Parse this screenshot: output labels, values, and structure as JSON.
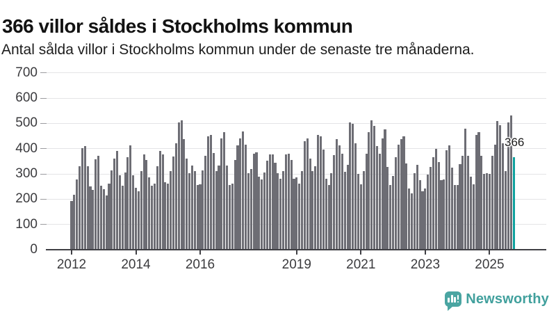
{
  "title": "366 villor såldes i Stockholms kommun",
  "subtitle": "Antal sålda villor i Stockholms kommun under de senaste tre månaderna.",
  "logo": {
    "text": "Newsworthy",
    "icon": "newsworthy-speech-bubble-bar-chart-icon",
    "icon_color": "#4aa5a2",
    "text_color": "#41a09d"
  },
  "colors": {
    "bar": "#6d6d74",
    "highlight_bar": "#0ea19e",
    "gridline": "#e4e4e6",
    "axis_line": "#3f3f44",
    "axis_text": "#3b3b3e",
    "title_text": "#121212"
  },
  "chart_data": {
    "type": "bar",
    "title": "366 villor såldes i Stockholms kommun",
    "subtitle": "Antal sålda villor i Stockholms kommun under de senaste tre månaderna.",
    "xlabel": "",
    "ylabel": "",
    "x_start": "2012-01",
    "x_end": "2025-10",
    "x_unit": "month",
    "ylim": [
      0,
      700
    ],
    "y_ticks": [
      0,
      100,
      200,
      300,
      400,
      500,
      600,
      700
    ],
    "x_tick_labels": [
      "2012",
      "2014",
      "2016",
      "2019",
      "2021",
      "2023",
      "2025"
    ],
    "x_tick_month_offsets": [
      0,
      24,
      48,
      84,
      108,
      132,
      156
    ],
    "grid": "horizontal",
    "legend": "none",
    "highlight_last": true,
    "highlight_value_label": "366",
    "values": [
      192,
      218,
      278,
      330,
      403,
      410,
      330,
      250,
      238,
      358,
      372,
      253,
      240,
      214,
      262,
      315,
      362,
      391,
      295,
      252,
      305,
      365,
      413,
      296,
      245,
      230,
      310,
      378,
      356,
      287,
      252,
      262,
      330,
      390,
      376,
      268,
      262,
      312,
      368,
      422,
      505,
      512,
      438,
      360,
      302,
      332,
      312,
      256,
      260,
      315,
      372,
      448,
      455,
      382,
      312,
      332,
      441,
      464,
      332,
      255,
      262,
      354,
      413,
      440,
      468,
      415,
      303,
      320,
      380,
      385,
      290,
      277,
      307,
      352,
      378,
      378,
      344,
      302,
      280,
      310,
      376,
      379,
      355,
      282,
      287,
      262,
      310,
      430,
      440,
      360,
      310,
      330,
      455,
      448,
      397,
      280,
      255,
      302,
      375,
      437,
      412,
      380,
      308,
      335,
      505,
      497,
      420,
      300,
      260,
      310,
      380,
      465,
      513,
      490,
      410,
      380,
      441,
      475,
      327,
      257,
      291,
      366,
      416,
      439,
      448,
      342,
      242,
      224,
      303,
      336,
      275,
      230,
      243,
      298,
      328,
      366,
      398,
      348,
      275,
      279,
      395,
      414,
      325,
      257,
      257,
      340,
      373,
      480,
      373,
      290,
      260,
      455,
      465,
      373,
      300,
      302,
      300,
      373,
      415,
      509,
      493,
      420,
      312,
      503,
      532,
      366
    ]
  }
}
